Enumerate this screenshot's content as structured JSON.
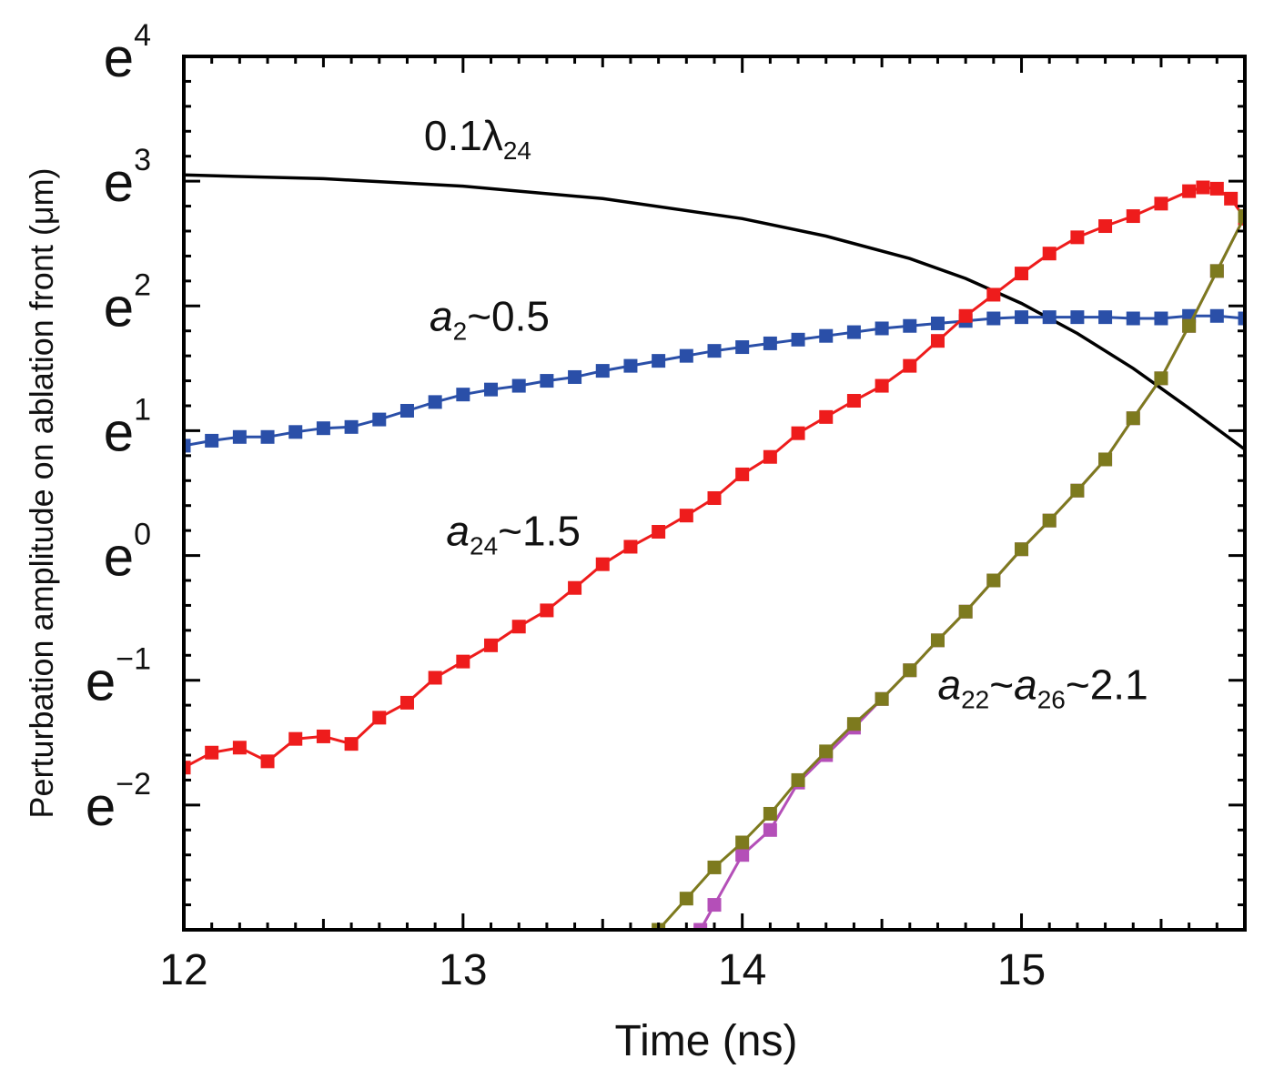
{
  "chart_data": {
    "type": "line",
    "title": "",
    "xlabel": "Time (ns)",
    "ylabel": "Perturbation amplitude on ablation front (μm)",
    "xlim": [
      12,
      15.8
    ],
    "ylim": [
      -3.0,
      4.0
    ],
    "y_scale": "natural log (ln of amplitude)",
    "x_ticks": [
      12,
      13,
      14,
      15
    ],
    "x_tick_labels": [
      "12",
      "13",
      "14",
      "15"
    ],
    "y_ticks": [
      -2,
      -1,
      0,
      1,
      2,
      3,
      4
    ],
    "y_tick_base": "e",
    "y_tick_exponents": [
      "−2",
      "−1",
      "0",
      "1",
      "2",
      "3",
      "4"
    ],
    "grid": false,
    "legend": "none",
    "annotations": [
      {
        "name": "wavelength-annotation",
        "main": "0.1λ",
        "sub": "24",
        "sup": "",
        "tail": "",
        "x": 12.86,
        "y": 3.25
      },
      {
        "name": "mode2-annotation",
        "var": "a",
        "sub": "2",
        "tail": "~0.5",
        "x": 12.88,
        "y": 1.8
      },
      {
        "name": "mode24-annotation",
        "var": "a",
        "sub": "24",
        "tail": "~1.5",
        "x": 12.94,
        "y": 0.08
      },
      {
        "name": "mode22-26-annotation",
        "var": "a",
        "sub": "22",
        "tail2": "~",
        "var2": "a",
        "sub2": "26",
        "tail": "~2.1",
        "x": 14.7,
        "y": -1.15
      }
    ],
    "series": [
      {
        "key": "lambda24",
        "color": "#000000",
        "markers": false,
        "x": [
          12.0,
          12.5,
          13.0,
          13.5,
          14.0,
          14.3,
          14.6,
          14.8,
          15.0,
          15.2,
          15.4,
          15.6,
          15.8
        ],
        "y": [
          3.05,
          3.02,
          2.96,
          2.86,
          2.7,
          2.56,
          2.38,
          2.22,
          2.02,
          1.78,
          1.5,
          1.18,
          0.85
        ]
      },
      {
        "key": "a2",
        "color": "#2a4fa8",
        "markers": true,
        "x": [
          12.0,
          12.1,
          12.2,
          12.3,
          12.4,
          12.5,
          12.6,
          12.7,
          12.8,
          12.9,
          13.0,
          13.1,
          13.2,
          13.3,
          13.4,
          13.5,
          13.6,
          13.7,
          13.8,
          13.9,
          14.0,
          14.1,
          14.2,
          14.3,
          14.4,
          14.5,
          14.6,
          14.7,
          14.8,
          14.9,
          15.0,
          15.1,
          15.2,
          15.3,
          15.4,
          15.5,
          15.6,
          15.7,
          15.8
        ],
        "y": [
          0.88,
          0.92,
          0.95,
          0.95,
          0.99,
          1.02,
          1.03,
          1.09,
          1.16,
          1.23,
          1.29,
          1.33,
          1.36,
          1.4,
          1.43,
          1.48,
          1.52,
          1.56,
          1.6,
          1.64,
          1.67,
          1.7,
          1.73,
          1.76,
          1.79,
          1.82,
          1.84,
          1.86,
          1.88,
          1.9,
          1.91,
          1.91,
          1.91,
          1.91,
          1.9,
          1.9,
          1.92,
          1.92,
          1.9
        ]
      },
      {
        "key": "a24",
        "color": "#ee1c1c",
        "markers": true,
        "x": [
          12.0,
          12.1,
          12.2,
          12.3,
          12.4,
          12.5,
          12.6,
          12.7,
          12.8,
          12.9,
          13.0,
          13.1,
          13.2,
          13.3,
          13.4,
          13.5,
          13.6,
          13.7,
          13.8,
          13.9,
          14.0,
          14.1,
          14.2,
          14.3,
          14.4,
          14.5,
          14.6,
          14.7,
          14.8,
          14.9,
          15.0,
          15.1,
          15.2,
          15.3,
          15.4,
          15.5,
          15.6,
          15.65,
          15.7,
          15.75,
          15.8
        ],
        "y": [
          -1.7,
          -1.58,
          -1.54,
          -1.65,
          -1.47,
          -1.45,
          -1.51,
          -1.3,
          -1.18,
          -0.98,
          -0.85,
          -0.72,
          -0.57,
          -0.44,
          -0.26,
          -0.07,
          0.07,
          0.19,
          0.32,
          0.46,
          0.65,
          0.79,
          0.98,
          1.11,
          1.24,
          1.36,
          1.52,
          1.72,
          1.92,
          2.09,
          2.26,
          2.42,
          2.55,
          2.64,
          2.72,
          2.82,
          2.92,
          2.95,
          2.94,
          2.86,
          2.7
        ]
      },
      {
        "key": "a26",
        "color": "#b44fb8",
        "markers": true,
        "x": [
          13.85,
          13.9,
          14.0,
          14.1,
          14.2,
          14.3,
          14.4,
          14.5,
          14.6,
          14.7,
          14.8,
          14.9,
          15.0,
          15.1,
          15.2,
          15.3,
          15.4,
          15.5,
          15.6,
          15.7,
          15.8
        ],
        "y": [
          -3.0,
          -2.8,
          -2.4,
          -2.2,
          -1.82,
          -1.6,
          -1.38,
          -1.15,
          -0.92,
          -0.68,
          -0.45,
          -0.2,
          0.05,
          0.28,
          0.52,
          0.77,
          1.1,
          1.42,
          1.84,
          2.28,
          2.72
        ]
      },
      {
        "key": "a22",
        "color": "#7d7a1e",
        "markers": true,
        "x": [
          13.7,
          13.8,
          13.9,
          14.0,
          14.1,
          14.2,
          14.3,
          14.4,
          14.5,
          14.6,
          14.7,
          14.8,
          14.9,
          15.0,
          15.1,
          15.2,
          15.3,
          15.4,
          15.5,
          15.6,
          15.7,
          15.8
        ],
        "y": [
          -3.0,
          -2.75,
          -2.5,
          -2.3,
          -2.07,
          -1.8,
          -1.57,
          -1.35,
          -1.15,
          -0.92,
          -0.68,
          -0.45,
          -0.2,
          0.05,
          0.28,
          0.52,
          0.77,
          1.1,
          1.42,
          1.84,
          2.28,
          2.72
        ]
      }
    ]
  }
}
